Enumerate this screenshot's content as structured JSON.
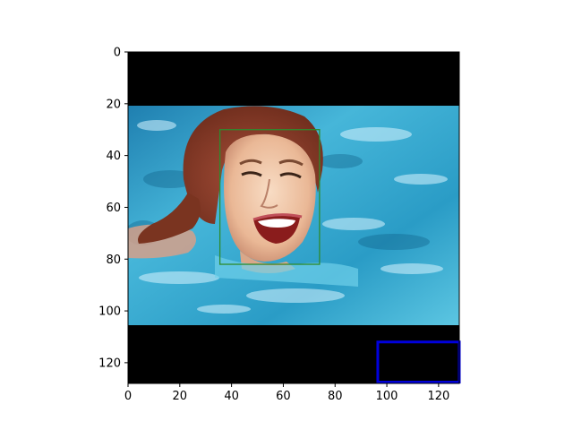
{
  "figure": {
    "background": "#ffffff",
    "image": {
      "description_content": "swimmer-face-photo",
      "letterbox_color": "#000000",
      "water_color": "#35a6cc",
      "hair_color": "#8a3a22",
      "skin_color": "#f0c8a8"
    },
    "x_ticks": [
      "0",
      "20",
      "40",
      "60",
      "80",
      "100",
      "120"
    ],
    "y_ticks": [
      "0",
      "20",
      "40",
      "60",
      "80",
      "100",
      "120"
    ],
    "x_range": [
      0,
      128
    ],
    "y_range": [
      0,
      128
    ],
    "boxes": [
      {
        "label": "",
        "color": "#2e8b2e",
        "x0": 35.5,
        "y0": 30,
        "x1": 74,
        "y1": 82
      },
      {
        "label": "",
        "color": "#0000dd",
        "x0": 96.5,
        "y0": 112,
        "x1": 128,
        "y1": 127.5
      }
    ]
  }
}
